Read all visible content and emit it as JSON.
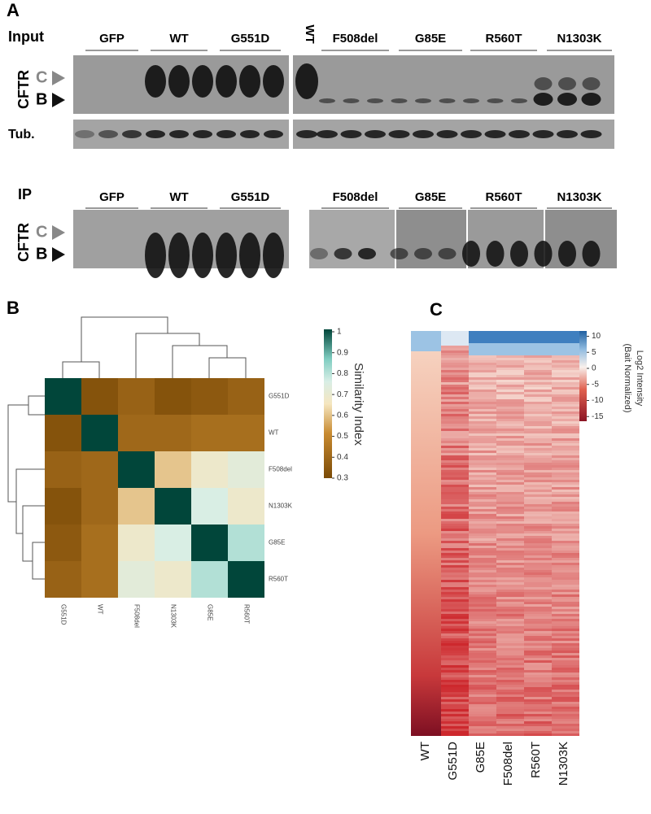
{
  "panel_a": {
    "label": "A",
    "input": {
      "title": "Input",
      "lanes": [
        "GFP",
        "WT",
        "G551D",
        "WT",
        "F508del",
        "G85E",
        "R560T",
        "N1303K"
      ],
      "protein": "CFTR",
      "bands": [
        "C",
        "B"
      ],
      "loading": "Tub."
    },
    "ip": {
      "title": "IP",
      "lanes": [
        "GFP",
        "WT",
        "G551D",
        "F508del",
        "G85E",
        "R560T",
        "N1303K"
      ],
      "protein": "CFTR",
      "bands": [
        "C",
        "B"
      ]
    }
  },
  "panel_b": {
    "label": "B",
    "rows": [
      "G551D",
      "WT",
      "F508del",
      "N1303K",
      "G85E",
      "R560T"
    ],
    "columns": [
      "G551D",
      "WT",
      "F508del",
      "N1303K",
      "G85E",
      "R560T"
    ],
    "values": [
      [
        1,
        0.33,
        0.38,
        0.33,
        0.35,
        0.38
      ],
      [
        0.33,
        1,
        0.4,
        0.4,
        0.42,
        0.42
      ],
      [
        0.38,
        0.4,
        1,
        0.6,
        0.68,
        0.72
      ],
      [
        0.33,
        0.4,
        0.6,
        1,
        0.75,
        0.68
      ],
      [
        0.35,
        0.42,
        0.68,
        0.75,
        1,
        0.8
      ],
      [
        0.38,
        0.42,
        0.72,
        0.68,
        0.8,
        1
      ]
    ],
    "colorbar": {
      "title": "Similarity Index",
      "ticks": [
        1,
        0.9,
        0.8,
        0.7,
        0.6,
        0.5,
        0.4,
        0.3
      ]
    }
  },
  "panel_c": {
    "label": "C",
    "columns": [
      "WT",
      "G551D",
      "G85E",
      "F508del",
      "R560T",
      "N1303K"
    ],
    "colorbar": {
      "title": [
        "Log2 Intensity",
        "(Bait Normalized)"
      ],
      "ticks": [
        10,
        5,
        0,
        -5,
        -10,
        -15
      ]
    }
  }
}
